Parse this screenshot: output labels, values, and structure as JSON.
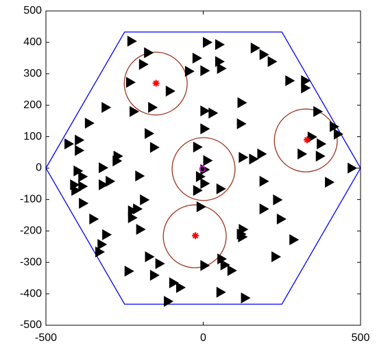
{
  "chart_data": {
    "type": "scatter",
    "xlim": [
      -500,
      500
    ],
    "ylim": [
      -500,
      500
    ],
    "xticks": [
      -500,
      0,
      500
    ],
    "yticks": [
      -500,
      -400,
      -300,
      -200,
      -100,
      0,
      100,
      200,
      300,
      400,
      500
    ],
    "series": [
      {
        "color": "#000000",
        "marker": "triangle",
        "x": [
          -228,
          -175,
          -191,
          -232,
          -162,
          -221,
          -173,
          -156,
          -310,
          -363,
          -428,
          -395,
          -395,
          -399,
          -384,
          -410,
          -406,
          -384,
          -319,
          -319,
          -297,
          -275,
          -272,
          -382,
          -349,
          -308,
          -323,
          -330,
          -210,
          -226,
          -226,
          -200,
          -188,
          -203,
          -237,
          -172,
          -139,
          -156,
          -95,
          -73,
          -112,
          -106,
          -45,
          -21,
          12,
          51,
          51,
          57,
          4,
          4,
          30,
          4,
          -19,
          13,
          4,
          -10,
          4,
          -19,
          55,
          -8,
          4,
          58,
          68,
          90,
          55,
          133,
          122,
          120,
          126,
          159,
          185,
          192,
          235,
          192,
          247,
          124,
          126,
          120,
          287,
          230,
          164,
          192,
          218,
          274,
          324,
          324,
          363,
          345,
          374,
          313,
          371,
          400,
          415,
          428,
          472
        ],
        "y": [
          404,
          367,
          330,
          273,
          193,
          180,
          110,
          66,
          193,
          143,
          77,
          89,
          56,
          -9,
          -27,
          -53,
          -71,
          -58,
          1,
          -53,
          -42,
          23,
          38,
          -112,
          -162,
          -212,
          -243,
          -267,
          -130,
          -158,
          -136,
          -195,
          -101,
          -25,
          -328,
          -282,
          -304,
          -341,
          -365,
          -380,
          -424,
          245,
          308,
          350,
          400,
          393,
          339,
          317,
          310,
          182,
          175,
          125,
          67,
          24,
          -5,
          -27,
          -49,
          -71,
          -66,
          -123,
          -310,
          -289,
          -308,
          -326,
          -395,
          -413,
          208,
          141,
          34,
          29,
          45,
          -42,
          -101,
          -130,
          -162,
          -219,
          -195,
          -210,
          -228,
          -282,
          382,
          361,
          339,
          278,
          278,
          255,
          180,
          99,
          77,
          45,
          38,
          -45,
          132,
          108,
          0
        ]
      },
      {
        "color": "#ff0000",
        "marker": "star",
        "x": [
          -150,
          -25,
          330
        ],
        "y": [
          270,
          -215,
          90
        ]
      },
      {
        "color": "#ff00ff",
        "marker": "circle",
        "x": [
          -3
        ],
        "y": [
          -3
        ]
      }
    ],
    "hexagon": {
      "color": "#0000ff",
      "x": [
        -500,
        -250,
        250,
        500,
        250,
        -250
      ],
      "y": [
        0,
        433,
        433,
        0,
        -433,
        -433
      ]
    },
    "circles": {
      "color": "#a0341c",
      "x": [
        -151,
        1,
        -27,
        326
      ],
      "y": [
        269,
        -3,
        -217,
        88
      ],
      "r": [
        100,
        100,
        100,
        100
      ]
    }
  }
}
